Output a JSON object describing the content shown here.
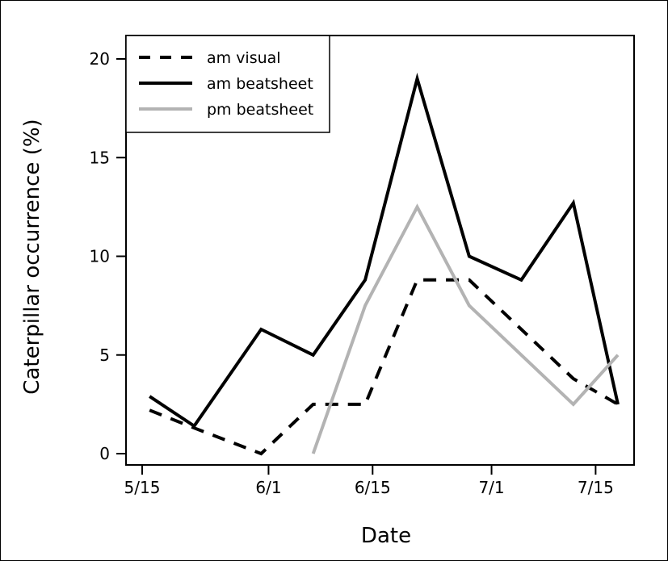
{
  "chart_data": {
    "type": "line",
    "xlabel": "Date",
    "ylabel": "Caterpillar occurrence (%)",
    "x_ticks": [
      {
        "label": "5/15",
        "date": "2012-05-15"
      },
      {
        "label": "6/1",
        "date": "2012-06-01"
      },
      {
        "label": "6/15",
        "date": "2012-06-15"
      },
      {
        "label": "7/1",
        "date": "2012-07-01"
      },
      {
        "label": "7/15",
        "date": "2012-07-15"
      }
    ],
    "xlim": [
      "2012-05-15",
      "2012-07-18"
    ],
    "ylim": [
      0,
      20
    ],
    "y_ticks": [
      0,
      5,
      10,
      15,
      20
    ],
    "grid": false,
    "legend": {
      "position": "top-left"
    },
    "series": [
      {
        "name": "am visual",
        "color": "#000000",
        "style": "dashed",
        "points": [
          {
            "x": "2012-05-16",
            "y": 2.2
          },
          {
            "x": "2012-05-22",
            "y": 1.3
          },
          {
            "x": "2012-05-31",
            "y": 0.0
          },
          {
            "x": "2012-06-07",
            "y": 2.5
          },
          {
            "x": "2012-06-14",
            "y": 2.5
          },
          {
            "x": "2012-06-21",
            "y": 8.8
          },
          {
            "x": "2012-06-28",
            "y": 8.8
          },
          {
            "x": "2012-07-05",
            "y": 6.3
          },
          {
            "x": "2012-07-12",
            "y": 3.8
          },
          {
            "x": "2012-07-18",
            "y": 2.5
          }
        ]
      },
      {
        "name": "am beatsheet",
        "color": "#000000",
        "style": "solid",
        "points": [
          {
            "x": "2012-05-16",
            "y": 2.9
          },
          {
            "x": "2012-05-22",
            "y": 1.4
          },
          {
            "x": "2012-05-31",
            "y": 6.3
          },
          {
            "x": "2012-06-07",
            "y": 5.0
          },
          {
            "x": "2012-06-14",
            "y": 8.8
          },
          {
            "x": "2012-06-21",
            "y": 19.0
          },
          {
            "x": "2012-06-28",
            "y": 10.0
          },
          {
            "x": "2012-07-05",
            "y": 8.8
          },
          {
            "x": "2012-07-12",
            "y": 12.7
          },
          {
            "x": "2012-07-18",
            "y": 2.5
          }
        ]
      },
      {
        "name": "pm beatsheet",
        "color": "#b3b3b3",
        "style": "solid",
        "points": [
          {
            "x": "2012-06-07",
            "y": 0.0
          },
          {
            "x": "2012-06-14",
            "y": 7.5
          },
          {
            "x": "2012-06-21",
            "y": 12.5
          },
          {
            "x": "2012-06-28",
            "y": 7.5
          },
          {
            "x": "2012-07-05",
            "y": 5.0
          },
          {
            "x": "2012-07-12",
            "y": 2.5
          },
          {
            "x": "2012-07-18",
            "y": 5.0
          }
        ]
      }
    ]
  }
}
